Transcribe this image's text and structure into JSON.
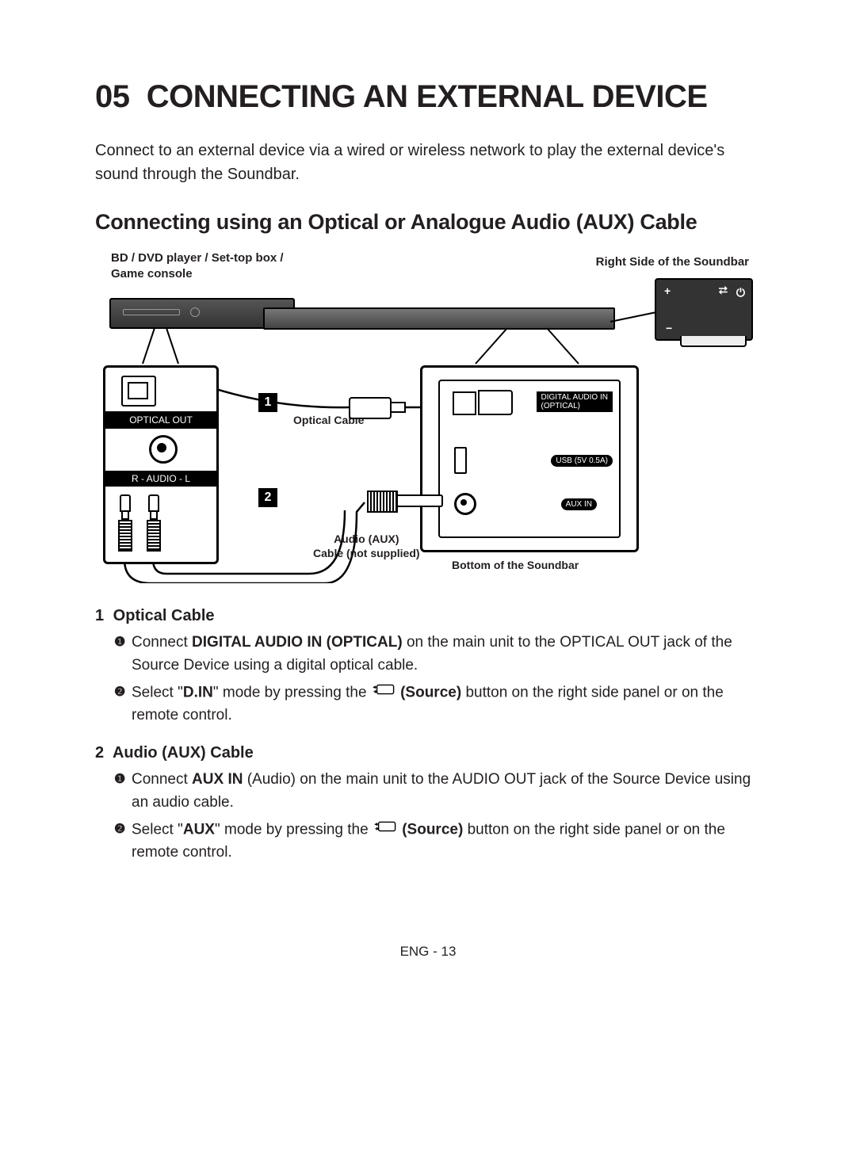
{
  "chapter_num": "05",
  "chapter_title": "CONNECTING AN EXTERNAL DEVICE",
  "intro": "Connect to an external device via a wired or wireless network to play the external device's sound through the Soundbar.",
  "section_title": "Connecting using an Optical or Analogue Audio (AUX) Cable",
  "diagram": {
    "bd_label_l1": "BD / DVD player / Set-top box /",
    "bd_label_l2": "Game console",
    "right_side_label": "Right Side of the Soundbar",
    "marker1": "1",
    "optical_cable_label": "Optical Cable",
    "marker2": "2",
    "aux_cable_label_l1": "Audio (AUX)",
    "aux_cable_label_l2": "Cable (not supplied)",
    "bottom_label": "Bottom of the Soundbar",
    "left_panel": {
      "optical_out": "OPTICAL OUT",
      "audio_rl": "R - AUDIO - L"
    },
    "right_panel": {
      "digital_in_l1": "DIGITAL AUDIO IN",
      "digital_in_l2": "(OPTICAL)",
      "usb": "USB (5V 0.5A)",
      "aux_in": "AUX IN"
    },
    "side_buttons": {
      "plus": "+",
      "minus": "−",
      "src": "⮂",
      "pwr": "⏻"
    }
  },
  "instructions": [
    {
      "num": "1",
      "title": "Optical Cable",
      "steps": [
        {
          "bullet": "❶",
          "parts": [
            {
              "t": "Connect "
            },
            {
              "t": "DIGITAL AUDIO IN (OPTICAL)",
              "b": true
            },
            {
              "t": " on the main unit to the OPTICAL OUT jack of the Source Device using a digital optical cable."
            }
          ]
        },
        {
          "bullet": "❷",
          "parts": [
            {
              "t": "Select \""
            },
            {
              "t": "D.IN",
              "b": true
            },
            {
              "t": "\" mode by pressing the "
            },
            {
              "icon": true
            },
            {
              "t": " (Source)",
              "b": true
            },
            {
              "t": " button on the right side panel or on the remote control."
            }
          ]
        }
      ]
    },
    {
      "num": "2",
      "title": "Audio (AUX) Cable",
      "steps": [
        {
          "bullet": "❶",
          "parts": [
            {
              "t": "Connect "
            },
            {
              "t": "AUX IN",
              "b": true
            },
            {
              "t": " (Audio) on the main unit to the AUDIO OUT jack of the Source Device using an audio cable."
            }
          ]
        },
        {
          "bullet": "❷",
          "parts": [
            {
              "t": "Select \""
            },
            {
              "t": "AUX",
              "b": true
            },
            {
              "t": "\" mode by pressing the "
            },
            {
              "icon": true
            },
            {
              "t": " (Source)",
              "b": true
            },
            {
              "t": " button on the right side panel or on the remote control."
            }
          ]
        }
      ]
    }
  ],
  "footer": "ENG - 13"
}
